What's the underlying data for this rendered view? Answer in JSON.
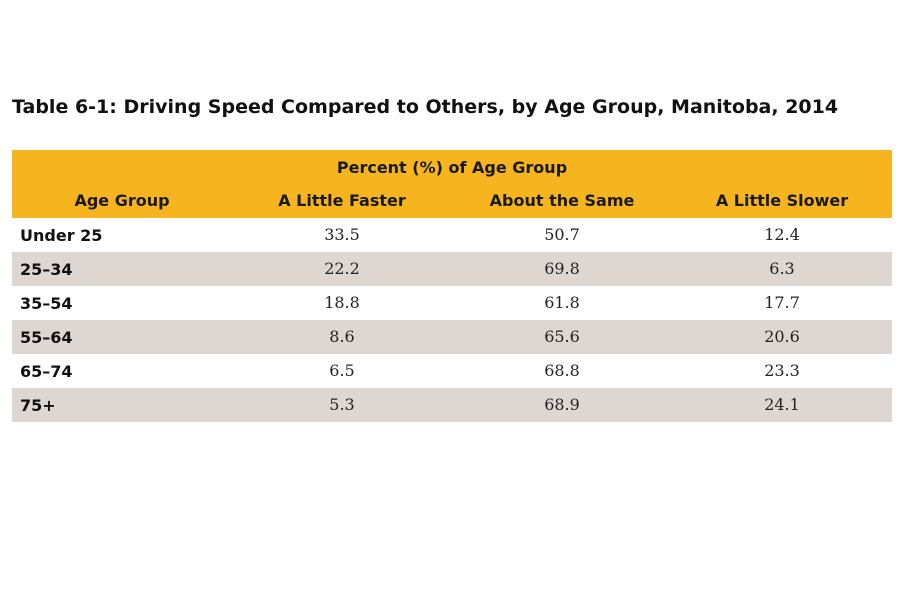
{
  "title": "Table 6-1: Driving Speed Compared to Others, by Age Group, Manitoba, 2014",
  "table": {
    "group_header": "Percent (%) of Age Group",
    "columns": [
      "Age Group",
      "A Little Faster",
      "About the Same",
      "A Little Slower"
    ],
    "rows": [
      [
        "Under 25",
        33.5,
        50.7,
        12.4
      ],
      [
        "25–34",
        22.2,
        69.8,
        6.3
      ],
      [
        "35–54",
        18.8,
        61.8,
        17.7
      ],
      [
        "55–64",
        8.6,
        65.6,
        20.6
      ],
      [
        "65–74",
        6.5,
        68.8,
        23.3
      ],
      [
        "75+",
        5.3,
        68.9,
        24.1
      ]
    ]
  }
}
